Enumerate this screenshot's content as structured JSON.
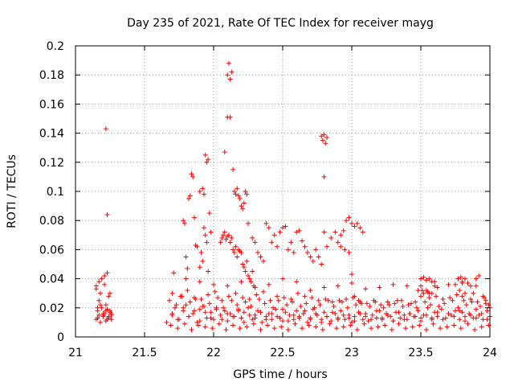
{
  "chart_data": {
    "type": "scatter",
    "title": "Day 235 of 2021, Rate Of TEC Index for receiver mayg",
    "xlabel": "GPS time / hours",
    "ylabel": "ROTI / TECUs",
    "xlim": [
      21,
      24
    ],
    "ylim": [
      0,
      0.2
    ],
    "xticks": [
      21,
      21.5,
      22,
      22.5,
      23,
      23.5,
      24
    ],
    "xtick_labels": [
      "21",
      "21.5",
      "22",
      "22.5",
      "23",
      "23.5",
      "24"
    ],
    "yticks": [
      0,
      0.02,
      0.04,
      0.06,
      0.08,
      0.1,
      0.12,
      0.14,
      0.16,
      0.18,
      0.2
    ],
    "ytick_labels": [
      "0",
      "0.02",
      "0.04",
      "0.06",
      "0.08",
      "0.1",
      "0.12",
      "0.14",
      "0.16",
      "0.18",
      "0.2"
    ],
    "grid": true,
    "marker": "+",
    "marker_color": "#ff0000",
    "series": [
      {
        "name": "ROTI",
        "x": [
          21.15,
          21.16,
          21.17,
          21.18,
          21.19,
          21.2,
          21.21,
          21.22,
          21.23,
          21.24,
          21.25,
          21.26,
          21.15,
          21.17,
          21.19,
          21.21,
          21.23,
          21.25,
          21.16,
          21.18,
          21.2,
          21.22,
          21.24,
          21.26,
          21.15,
          21.18,
          21.21,
          21.24,
          21.16,
          21.2,
          21.23,
          21.26,
          21.17,
          21.22,
          21.25,
          21.22,
          21.23,
          21.7,
          21.72,
          21.75,
          21.78,
          21.8,
          21.82,
          21.85,
          21.88,
          21.9,
          21.92,
          21.95,
          21.98,
          22.0,
          22.02,
          22.05,
          22.08,
          22.1,
          22.12,
          22.15,
          22.18,
          22.2,
          22.22,
          22.25,
          22.28,
          22.3,
          22.32,
          22.35,
          22.38,
          22.4,
          22.42,
          22.45,
          22.48,
          22.5,
          22.52,
          22.55,
          22.58,
          22.6,
          22.62,
          22.65,
          22.68,
          22.7,
          22.72,
          22.75,
          22.78,
          22.8,
          22.82,
          22.85,
          22.88,
          22.9,
          22.92,
          22.95,
          22.98,
          23.0,
          23.02,
          23.05,
          23.08,
          23.1,
          23.12,
          23.15,
          23.18,
          23.2,
          23.22,
          23.25,
          23.28,
          23.3,
          23.32,
          23.35,
          23.38,
          23.4,
          23.42,
          23.45,
          23.48,
          23.5,
          23.52,
          23.55,
          23.58,
          23.6,
          23.62,
          23.65,
          23.68,
          23.7,
          23.72,
          23.75,
          23.78,
          23.8,
          23.82,
          23.85,
          23.88,
          23.9,
          23.92,
          23.95,
          23.98,
          24.0,
          21.68,
          21.73,
          21.77,
          21.83,
          21.87,
          21.93,
          21.97,
          22.03,
          22.07,
          22.13,
          22.17,
          22.23,
          22.27,
          22.33,
          22.37,
          22.43,
          22.47,
          22.53,
          22.57,
          22.63,
          22.67,
          22.73,
          22.77,
          22.83,
          22.87,
          22.93,
          22.97,
          23.03,
          23.07,
          23.13,
          23.17,
          23.23,
          23.27,
          23.33,
          23.37,
          23.43,
          23.47,
          23.53,
          23.57,
          23.63,
          23.67,
          23.73,
          23.77,
          23.83,
          23.87,
          23.93,
          23.97,
          21.69,
          21.74,
          21.79,
          21.84,
          21.89,
          21.94,
          21.99,
          22.04,
          22.09,
          22.14,
          22.19,
          22.24,
          22.29,
          22.34,
          22.39,
          22.44,
          22.49,
          22.54,
          22.59,
          22.64,
          22.69,
          22.74,
          22.79,
          22.84,
          22.89,
          22.94,
          22.99,
          23.04,
          23.09,
          23.14,
          23.19,
          23.24,
          23.29,
          23.34,
          23.39,
          23.44,
          23.49,
          23.54,
          23.59,
          23.64,
          23.69,
          23.74,
          23.79,
          23.84,
          23.89,
          23.94,
          23.99,
          21.7,
          21.76,
          21.81,
          21.86,
          21.91,
          21.96,
          22.01,
          22.06,
          22.11,
          22.16,
          22.21,
          22.26,
          22.31,
          22.36,
          22.41,
          22.46,
          22.51,
          22.56,
          22.61,
          22.66,
          22.71,
          22.76,
          22.81,
          22.86,
          22.91,
          22.96,
          23.01,
          23.06,
          23.11,
          23.16,
          23.21,
          23.26,
          23.31,
          23.36,
          23.41,
          23.46,
          23.51,
          23.56,
          23.61,
          23.66,
          23.71,
          23.76,
          23.81,
          23.86,
          23.91,
          23.96,
          21.71,
          21.8,
          21.9,
          22.0,
          22.1,
          22.2,
          22.3,
          22.4,
          22.5,
          22.6,
          22.7,
          22.8,
          22.9,
          23.0,
          23.1,
          23.2,
          23.3,
          23.4,
          23.5,
          23.6,
          23.7,
          23.8,
          23.9,
          21.66,
          21.7,
          21.74,
          21.78,
          21.82,
          21.86,
          21.9,
          21.94,
          21.98,
          22.02,
          22.06,
          22.1,
          22.14,
          22.18,
          22.22,
          22.26,
          22.3,
          22.34,
          22.38,
          22.42,
          22.46,
          22.5,
          22.54,
          22.58,
          22.62,
          22.66,
          22.7,
          22.74,
          22.78,
          22.82,
          22.86,
          22.9,
          22.94,
          22.98,
          23.02,
          23.06,
          23.1,
          23.14,
          23.18,
          23.22,
          23.26,
          23.3,
          23.34,
          23.38,
          23.42,
          23.46,
          23.5,
          23.54,
          23.58,
          23.62,
          23.66,
          23.7,
          23.74,
          23.78,
          23.82,
          23.86,
          23.9,
          23.94,
          23.98,
          21.78,
          21.79,
          21.8,
          21.81,
          21.82,
          21.83,
          21.84,
          21.85,
          21.86,
          21.87,
          21.88,
          21.9,
          21.92,
          21.93,
          21.94,
          21.95,
          21.96,
          21.97,
          21.98,
          21.9,
          21.91,
          21.92,
          21.93,
          21.94,
          21.95,
          21.96,
          22.05,
          22.06,
          22.07,
          22.08,
          22.09,
          22.1,
          22.11,
          22.12,
          22.13,
          22.14,
          22.15,
          22.16,
          22.17,
          22.18,
          22.19,
          22.2,
          22.21,
          22.22,
          22.23,
          22.24,
          22.25,
          22.26,
          22.27,
          22.28,
          22.29,
          22.3,
          22.08,
          22.1,
          22.12,
          22.11,
          22.13,
          22.1,
          22.12,
          22.14,
          22.15,
          22.16,
          22.17,
          22.18,
          22.19,
          22.2,
          22.21,
          22.22,
          22.23,
          22.24,
          22.25,
          22.28,
          22.3,
          22.32,
          22.34,
          22.36,
          22.38,
          22.4,
          22.42,
          22.44,
          22.46,
          22.48,
          22.5,
          22.52,
          22.54,
          22.56,
          22.58,
          22.6,
          22.62,
          22.64,
          22.66,
          22.68,
          22.7,
          22.72,
          22.74,
          22.76,
          22.78,
          22.8,
          22.82,
          22.78,
          22.79,
          22.8,
          22.81,
          22.82,
          22.8,
          22.85,
          22.88,
          22.9,
          22.92,
          22.94,
          22.96,
          22.98,
          23.0,
          23.02,
          23.04,
          23.06,
          23.08,
          22.92,
          22.95,
          22.98,
          23.0,
          23.02,
          23.05,
          23.48,
          23.5,
          23.52,
          23.54,
          23.56,
          23.58,
          23.6,
          23.62,
          23.5,
          23.52,
          23.54,
          23.56,
          23.58,
          23.5,
          23.55,
          23.75,
          23.77,
          23.79,
          23.8,
          23.82,
          23.84,
          23.86,
          23.88,
          23.9,
          23.92,
          23.78,
          23.8,
          23.82,
          23.95,
          23.97,
          23.99,
          24.0
        ],
        "y": [
          0.012,
          0.018,
          0.015,
          0.01,
          0.02,
          0.014,
          0.016,
          0.011,
          0.019,
          0.013,
          0.017,
          0.012,
          0.035,
          0.038,
          0.04,
          0.042,
          0.044,
          0.03,
          0.02,
          0.022,
          0.016,
          0.018,
          0.014,
          0.015,
          0.033,
          0.03,
          0.036,
          0.028,
          0.013,
          0.015,
          0.012,
          0.016,
          0.025,
          0.022,
          0.018,
          0.143,
          0.084,
          0.015,
          0.02,
          0.012,
          0.018,
          0.022,
          0.014,
          0.016,
          0.01,
          0.019,
          0.021,
          0.013,
          0.017,
          0.012,
          0.02,
          0.015,
          0.018,
          0.011,
          0.016,
          0.014,
          0.019,
          0.013,
          0.017,
          0.02,
          0.012,
          0.015,
          0.018,
          0.01,
          0.014,
          0.016,
          0.012,
          0.019,
          0.013,
          0.011,
          0.017,
          0.015,
          0.012,
          0.018,
          0.014,
          0.016,
          0.01,
          0.013,
          0.019,
          0.015,
          0.012,
          0.017,
          0.014,
          0.011,
          0.016,
          0.013,
          0.018,
          0.012,
          0.015,
          0.01,
          0.014,
          0.017,
          0.012,
          0.016,
          0.011,
          0.015,
          0.013,
          0.018,
          0.012,
          0.016,
          0.014,
          0.011,
          0.017,
          0.013,
          0.015,
          0.012,
          0.016,
          0.014,
          0.018,
          0.013,
          0.015,
          0.02,
          0.012,
          0.017,
          0.014,
          0.019,
          0.013,
          0.016,
          0.015,
          0.018,
          0.012,
          0.017,
          0.014,
          0.016,
          0.013,
          0.019,
          0.015,
          0.012,
          0.018,
          0.014,
          0.025,
          0.022,
          0.028,
          0.024,
          0.026,
          0.021,
          0.023,
          0.027,
          0.02,
          0.025,
          0.022,
          0.024,
          0.021,
          0.026,
          0.023,
          0.02,
          0.025,
          0.022,
          0.024,
          0.021,
          0.023,
          0.02,
          0.022,
          0.025,
          0.021,
          0.024,
          0.02,
          0.022,
          0.023,
          0.021,
          0.024,
          0.02,
          0.022,
          0.025,
          0.021,
          0.023,
          0.02,
          0.024,
          0.022,
          0.021,
          0.023,
          0.025,
          0.02,
          0.022,
          0.024,
          0.021,
          0.023,
          0.008,
          0.006,
          0.009,
          0.005,
          0.008,
          0.007,
          0.006,
          0.009,
          0.005,
          0.008,
          0.006,
          0.007,
          0.009,
          0.005,
          0.008,
          0.006,
          0.007,
          0.005,
          0.009,
          0.006,
          0.008,
          0.007,
          0.005,
          0.009,
          0.006,
          0.007,
          0.008,
          0.005,
          0.009,
          0.006,
          0.007,
          0.008,
          0.005,
          0.009,
          0.006,
          0.007,
          0.008,
          0.005,
          0.009,
          0.006,
          0.007,
          0.008,
          0.006,
          0.009,
          0.005,
          0.007,
          0.008,
          0.03,
          0.028,
          0.032,
          0.027,
          0.026,
          0.029,
          0.031,
          0.025,
          0.028,
          0.03,
          0.027,
          0.026,
          0.029,
          0.031,
          0.025,
          0.028,
          0.027,
          0.026,
          0.03,
          0.028,
          0.027,
          0.025,
          0.026,
          0.024,
          0.025,
          0.026,
          0.027,
          0.024,
          0.023,
          0.025,
          0.022,
          0.024,
          0.023,
          0.025,
          0.022,
          0.024,
          0.032,
          0.03,
          0.028,
          0.026,
          0.027,
          0.029,
          0.025,
          0.026,
          0.024,
          0.027,
          0.044,
          0.04,
          0.038,
          0.036,
          0.035,
          0.038,
          0.034,
          0.036,
          0.04,
          0.038,
          0.032,
          0.034,
          0.035,
          0.037,
          0.033,
          0.034,
          0.036,
          0.035,
          0.04,
          0.038,
          0.036,
          0.037,
          0.035,
          0.01,
          0.016,
          0.012,
          0.02,
          0.014,
          0.018,
          0.011,
          0.017,
          0.013,
          0.019,
          0.012,
          0.016,
          0.014,
          0.018,
          0.01,
          0.015,
          0.013,
          0.017,
          0.012,
          0.016,
          0.014,
          0.019,
          0.011,
          0.015,
          0.013,
          0.018,
          0.012,
          0.016,
          0.01,
          0.014,
          0.017,
          0.012,
          0.015,
          0.013,
          0.011,
          0.016,
          0.014,
          0.012,
          0.018,
          0.013,
          0.015,
          0.011,
          0.017,
          0.012,
          0.016,
          0.014,
          0.011,
          0.015,
          0.013,
          0.017,
          0.012,
          0.016,
          0.014,
          0.018,
          0.011,
          0.015,
          0.013,
          0.016,
          0.012,
          0.08,
          0.078,
          0.055,
          0.047,
          0.095,
          0.097,
          0.112,
          0.11,
          0.082,
          0.063,
          0.062,
          0.1,
          0.102,
          0.098,
          0.125,
          0.12,
          0.122,
          0.085,
          0.072,
          0.048,
          0.058,
          0.052,
          0.075,
          0.07,
          0.065,
          0.045,
          0.065,
          0.068,
          0.07,
          0.072,
          0.067,
          0.069,
          0.07,
          0.065,
          0.068,
          0.06,
          0.058,
          0.062,
          0.055,
          0.06,
          0.059,
          0.058,
          0.05,
          0.048,
          0.045,
          0.052,
          0.042,
          0.04,
          0.038,
          0.045,
          0.035,
          0.034,
          0.127,
          0.151,
          0.151,
          0.188,
          0.182,
          0.18,
          0.177,
          0.115,
          0.1,
          0.098,
          0.102,
          0.097,
          0.095,
          0.09,
          0.088,
          0.092,
          0.1,
          0.098,
          0.078,
          0.068,
          0.065,
          0.058,
          0.055,
          0.052,
          0.078,
          0.075,
          0.065,
          0.07,
          0.062,
          0.072,
          0.075,
          0.076,
          0.06,
          0.065,
          0.058,
          0.072,
          0.073,
          0.066,
          0.062,
          0.058,
          0.055,
          0.052,
          0.06,
          0.055,
          0.05,
          0.072,
          0.062,
          0.138,
          0.135,
          0.139,
          0.133,
          0.137,
          0.11,
          0.068,
          0.072,
          0.065,
          0.07,
          0.073,
          0.08,
          0.082,
          0.078,
          0.076,
          0.078,
          0.075,
          0.072,
          0.062,
          0.06,
          0.058,
          0.043,
          0.028,
          0.025,
          0.032,
          0.04,
          0.041,
          0.039,
          0.04,
          0.038,
          0.035,
          0.034,
          0.028,
          0.03,
          0.032,
          0.027,
          0.03,
          0.035,
          0.031,
          0.036,
          0.04,
          0.041,
          0.038,
          0.04,
          0.037,
          0.035,
          0.03,
          0.04,
          0.042,
          0.032,
          0.028,
          0.03,
          0.028,
          0.025,
          0.022,
          0.02
        ]
      }
    ]
  }
}
